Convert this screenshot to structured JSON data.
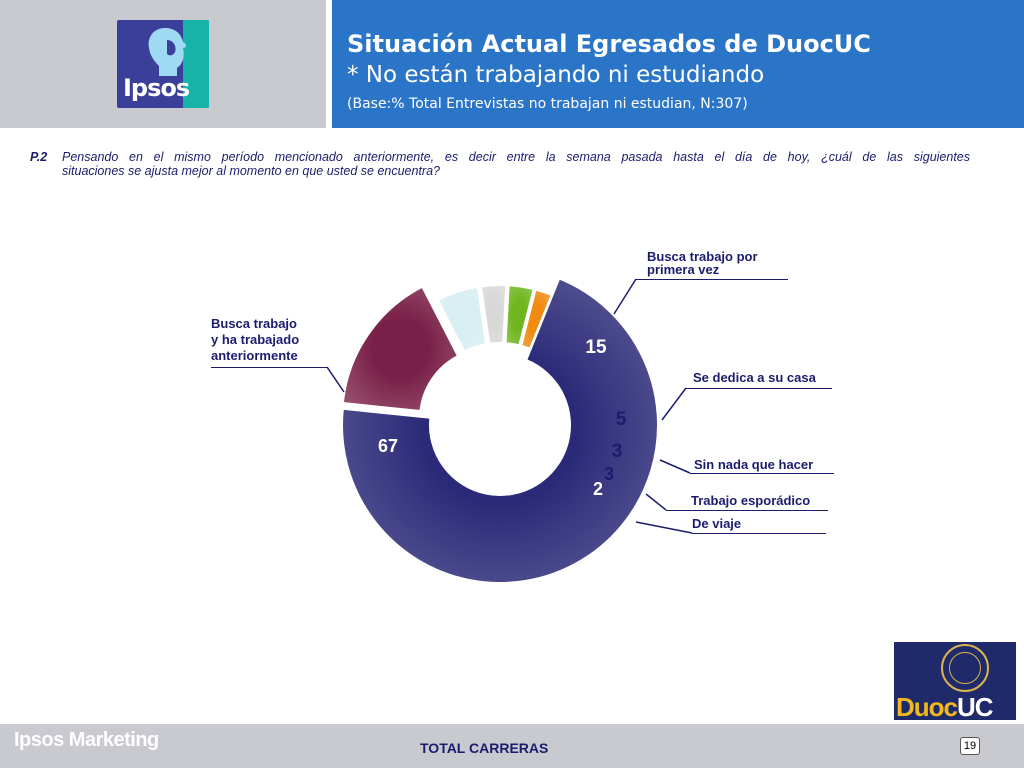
{
  "header": {
    "logo_text": "Ipsos",
    "title": "Situación Actual Egresados de  DuocUC",
    "subtitle": "* No están trabajando ni estudiando",
    "base_note": "(Base:% Total Entrevistas no trabajan ni estudian, N:307)"
  },
  "question": {
    "number": "P.2",
    "line1": "Pensando en el mismo período mencionado anteriormente, es decir entre la semana pasada hasta el día de hoy, ¿cuál de las siguientes",
    "line2": "situaciones se ajusta mejor al momento en que usted se encuentra?"
  },
  "labels": {
    "busca_ha_trabajado": [
      "Busca trabajo",
      "y ha trabajado",
      "anteriormente"
    ],
    "primera_vez": [
      "Busca trabajo por",
      "primera vez"
    ],
    "casa": "Se dedica a su casa",
    "nada": "Sin nada que hacer",
    "esporadico": "Trabajo esporádico",
    "viaje": "De viaje"
  },
  "chart_data": {
    "type": "pie",
    "style": "donut",
    "title": "",
    "slices": [
      {
        "name": "Busca trabajo y ha trabajado anteriormente",
        "value": 67,
        "color": "#2b2a78"
      },
      {
        "name": "Busca trabajo por primera vez",
        "value": 15,
        "color": "#7a2048"
      },
      {
        "name": "Se dedica a su casa",
        "value": 5,
        "color": "#d7eef2"
      },
      {
        "name": "Sin nada que hacer",
        "value": 3,
        "color": "#d8d8d8"
      },
      {
        "name": "Trabajo esporádico",
        "value": 3,
        "color": "#6fb51d"
      },
      {
        "name": "De viaje",
        "value": 2,
        "color": "#f08a10"
      }
    ],
    "value_label_color": "#1c1c6e"
  },
  "footer": {
    "brand": "Ipsos Marketing",
    "total": "TOTAL CARRERAS",
    "page": "19"
  },
  "logo_duoc": {
    "word_a": "Duoc",
    "word_b": "UC"
  }
}
